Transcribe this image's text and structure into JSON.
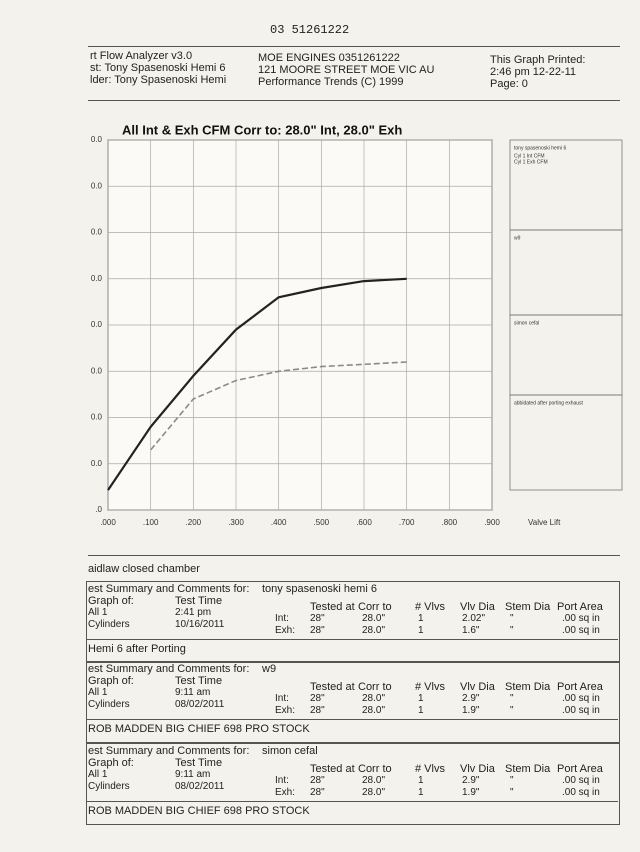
{
  "header": {
    "fax": "03 51261222",
    "left": [
      "rt Flow Analyzer v3.0",
      "st: Tony Spasenoski Hemi 6",
      "lder: Tony Spasenoski Hemi"
    ],
    "center": [
      "MOE ENGINES 0351261222",
      "121 MOORE STREET MOE VIC AU",
      "Performance Trends (C) 1999"
    ],
    "right": [
      "This Graph Printed:",
      "2:46 pm 12-22-11",
      "Page: 0"
    ]
  },
  "chart_data": {
    "type": "line",
    "title": "All Int & Exh CFM   Corr to: 28.0\" Int, 28.0\" Exh",
    "x_label": "Valve Lift",
    "x": [
      0,
      0.1,
      0.2,
      0.3,
      0.4,
      0.5,
      0.6,
      0.7
    ],
    "series": [
      {
        "name": "Cyl 1 Int CFM",
        "color": "#222222",
        "style": "solid",
        "values": [
          0.43,
          1.8,
          2.9,
          3.9,
          4.6,
          4.8,
          4.95,
          5.0
        ]
      },
      {
        "name": "Cyl 1 Exh CFM",
        "color": "#8a8a8a",
        "style": "dashed",
        "values": [
          null,
          1.3,
          2.4,
          2.8,
          3.0,
          3.1,
          3.15,
          3.2
        ]
      }
    ],
    "xlim": [
      0,
      0.9
    ],
    "xticks": [
      {
        "value": 0,
        "label": ".000"
      },
      {
        "value": 0.1,
        "label": ".100"
      },
      {
        "value": 0.2,
        "label": ".200"
      },
      {
        "value": 0.3,
        "label": ".300"
      },
      {
        "value": 0.4,
        "label": ".400"
      },
      {
        "value": 0.5,
        "label": ".500"
      },
      {
        "value": 0.6,
        "label": ".600"
      },
      {
        "value": 0.7,
        "label": ".700"
      },
      {
        "value": 0.8,
        "label": ".800"
      },
      {
        "value": 0.9,
        "label": ".900"
      }
    ],
    "ylim": [
      0,
      8
    ],
    "yticks": [
      {
        "value": 0,
        "label": ".0"
      },
      {
        "value": 1,
        "label": "0.0"
      },
      {
        "value": 2,
        "label": "0.0"
      },
      {
        "value": 3,
        "label": "0.0"
      },
      {
        "value": 4,
        "label": "0.0"
      },
      {
        "value": 5,
        "label": "0.0"
      },
      {
        "value": 6,
        "label": "0.0"
      },
      {
        "value": 7,
        "label": "0.0"
      },
      {
        "value": 8,
        "label": "0.0"
      }
    ],
    "grid": true
  },
  "legend_panels": [
    "tony spasenoski hemi 6",
    "w9",
    "simon cefal",
    "abbidated after porting exhaust"
  ],
  "section_title": "aidlaw closed chamber",
  "summaries": [
    {
      "heading": "est Summary and Comments for:",
      "name": "tony spasenoski hemi 6",
      "columns": [
        "Graph of:",
        "Test Time",
        "Tested at",
        "Corr to",
        "# Vlvs",
        "Vlv Dia",
        "Stem Dia",
        "Port Area"
      ],
      "rows": [
        [
          "All 1",
          "2:41 pm",
          "Int:",
          "28\"",
          "28.0\"",
          "1",
          "2.02\"",
          "\"",
          ".00 sq in"
        ],
        [
          "Cylinders",
          "10/16/2011",
          "Exh:",
          "28\"",
          "28.0\"",
          "1",
          "1.6\"",
          "\"",
          ".00 sq in"
        ]
      ],
      "comment": "Hemi 6 after Porting"
    },
    {
      "heading": "est Summary and Comments for:",
      "name": "w9",
      "columns": [
        "Graph of:",
        "Test Time",
        "Tested at",
        "Corr to",
        "# Vlvs",
        "Vlv Dia",
        "Stem Dia",
        "Port Area"
      ],
      "rows": [
        [
          "All 1",
          "9:11 am",
          "Int:",
          "28\"",
          "28.0\"",
          "1",
          "2.9\"",
          "\"",
          ".00 sq in"
        ],
        [
          "Cylinders",
          "08/02/2011",
          "Exh:",
          "28\"",
          "28.0\"",
          "1",
          "1.9\"",
          "\"",
          ".00 sq in"
        ]
      ],
      "comment": "ROB MADDEN BIG CHIEF 698 PRO STOCK"
    },
    {
      "heading": "est Summary and Comments for:",
      "name": "simon cefal",
      "columns": [
        "Graph of:",
        "Test Time",
        "Tested at",
        "Corr to",
        "# Vlvs",
        "Vlv Dia",
        "Stem Dia",
        "Port Area"
      ],
      "rows": [
        [
          "All 1",
          "9:11 am",
          "Int:",
          "28\"",
          "28.0\"",
          "1",
          "2.9\"",
          "\"",
          ".00 sq in"
        ],
        [
          "Cylinders",
          "08/02/2011",
          "Exh:",
          "28\"",
          "28.0\"",
          "1",
          "1.9\"",
          "\"",
          ".00 sq in"
        ]
      ],
      "comment": "ROB MADDEN BIG CHIEF 698 PRO STOCK"
    }
  ]
}
